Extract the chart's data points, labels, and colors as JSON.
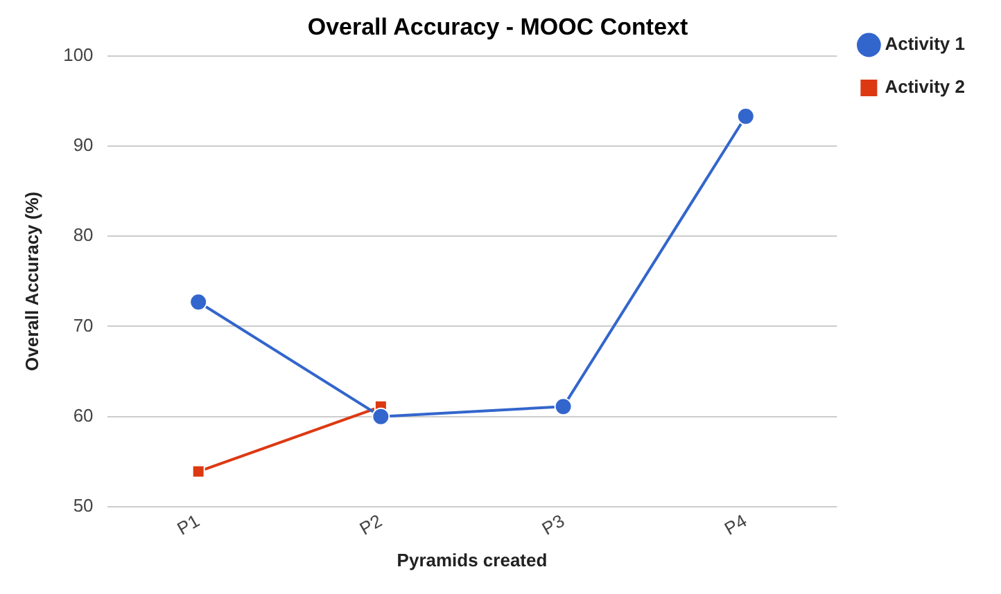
{
  "chart_data": {
    "type": "line",
    "title": "Overall Accuracy - MOOC Context",
    "xlabel": "Pyramids created",
    "ylabel": "Overall Accuracy (%)",
    "categories": [
      "P1",
      "P2",
      "P3",
      "P4"
    ],
    "series": [
      {
        "name": "Activity 1",
        "color": "#3366cc",
        "marker": "circle",
        "values": [
          72.7,
          60,
          61.1,
          93.3
        ]
      },
      {
        "name": "Activity 2",
        "color": "#dc3912",
        "marker": "square",
        "values": [
          53.9,
          61.1,
          null,
          null
        ]
      }
    ],
    "ylim": [
      50,
      100
    ],
    "yticks": [
      50,
      60,
      70,
      80,
      90,
      100
    ],
    "grid": "y",
    "legend": "top right"
  }
}
